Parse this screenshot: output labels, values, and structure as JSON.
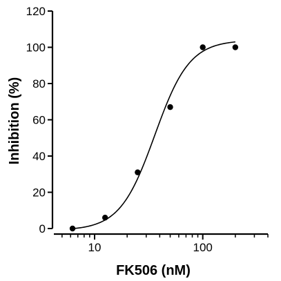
{
  "chart_data": {
    "type": "scatter",
    "xlabel": "FK506 (nM)",
    "ylabel": "Inhibition (%)",
    "x_scale": "log",
    "xlim": [
      4.2,
      400
    ],
    "ylim": [
      0,
      120
    ],
    "x_ticks": [
      10,
      100
    ],
    "x_tick_labels": [
      "10",
      "100"
    ],
    "y_ticks": [
      0,
      20,
      40,
      60,
      80,
      100,
      120
    ],
    "y_tick_labels": [
      "0",
      "20",
      "40",
      "60",
      "80",
      "100",
      "120"
    ],
    "grid": false,
    "points": {
      "x": [
        6.25,
        12.5,
        25,
        50,
        100,
        200
      ],
      "y": [
        0,
        6,
        31,
        67,
        100,
        100
      ]
    },
    "fit_curve": {
      "model": "sigmoidal dose-response",
      "bottom": -1,
      "top": 104,
      "ec50": 36,
      "hill": 2.7,
      "x_range": [
        6.25,
        200
      ]
    }
  }
}
